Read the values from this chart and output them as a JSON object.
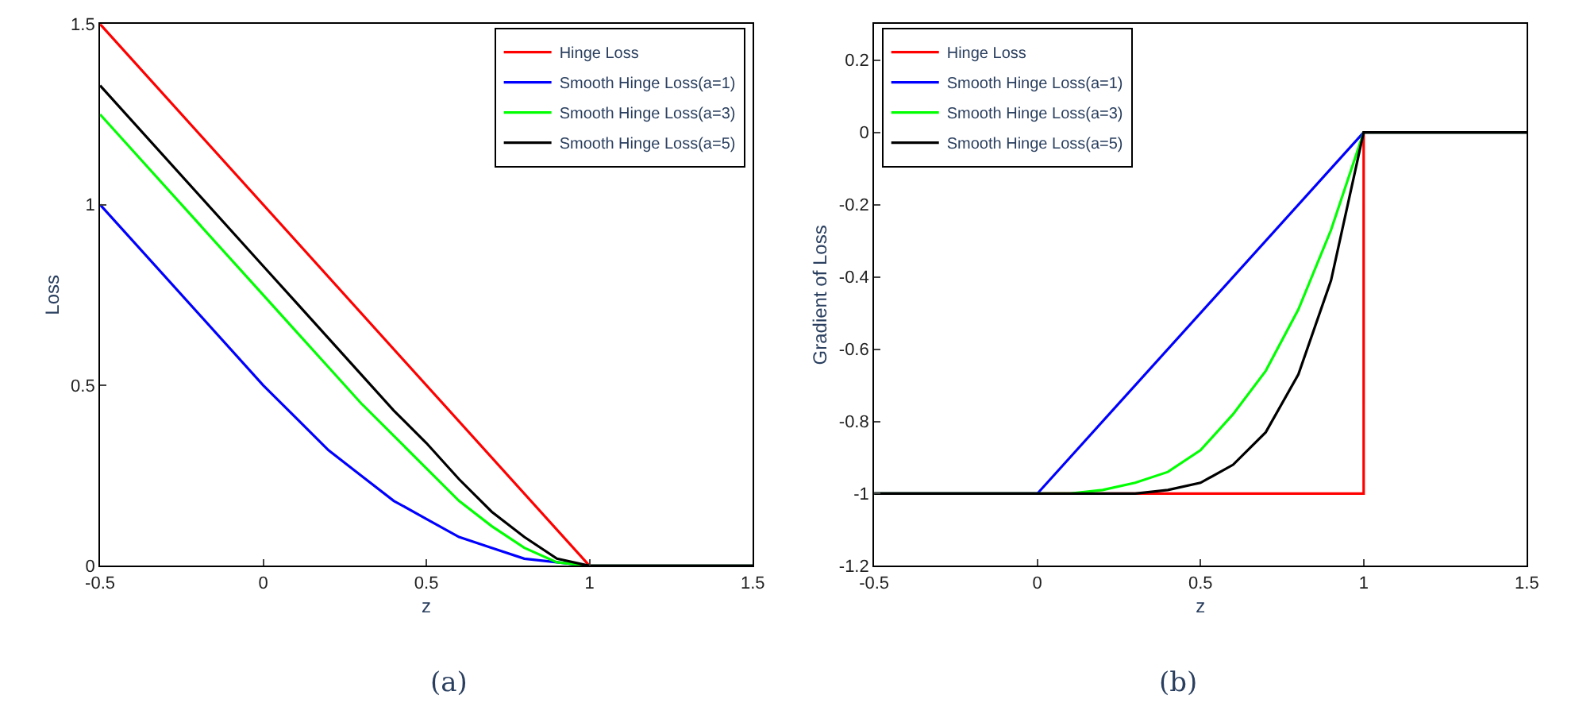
{
  "chart_data": [
    {
      "type": "line",
      "xlabel": "z",
      "ylabel": "Loss",
      "xlim": [
        -0.5,
        1.5
      ],
      "xticks": [
        -0.5,
        0,
        0.5,
        1,
        1.5
      ],
      "ylim": [
        0,
        1.5
      ],
      "yticks": [
        0,
        0.5,
        1,
        1.5
      ],
      "legend": "top right",
      "marker": "none",
      "line_style": "solid",
      "annotations": [
        "(a)"
      ],
      "series": [
        {
          "name": "Hinge Loss",
          "color": "#ff0000",
          "x": [
            -0.5,
            1,
            1.5
          ],
          "values": [
            1.5,
            0,
            0
          ]
        },
        {
          "name": "Smooth Hinge Loss(a=1)",
          "color": "#0000ff",
          "x": [
            -0.5,
            0,
            0.1,
            0.2,
            0.3,
            0.4,
            0.5,
            0.6,
            0.7,
            0.8,
            0.9,
            1,
            1.5
          ],
          "values": [
            1.0,
            0.5,
            0.41,
            0.32,
            0.25,
            0.18,
            0.13,
            0.08,
            0.05,
            0.02,
            0.01,
            0,
            0
          ]
        },
        {
          "name": "Smooth Hinge Loss(a=3)",
          "color": "#00ff00",
          "x": [
            -0.5,
            0,
            0.1,
            0.2,
            0.3,
            0.4,
            0.5,
            0.6,
            0.7,
            0.8,
            0.9,
            1,
            1.5
          ],
          "values": [
            1.25,
            0.75,
            0.65,
            0.55,
            0.45,
            0.36,
            0.27,
            0.18,
            0.11,
            0.05,
            0.01,
            0,
            0
          ]
        },
        {
          "name": "Smooth Hinge Loss(a=5)",
          "color": "#000000",
          "x": [
            -0.5,
            0,
            0.1,
            0.2,
            0.3,
            0.4,
            0.5,
            0.6,
            0.7,
            0.8,
            0.9,
            1,
            1.5
          ],
          "values": [
            1.33,
            0.83,
            0.73,
            0.63,
            0.53,
            0.43,
            0.34,
            0.24,
            0.15,
            0.08,
            0.02,
            0,
            0
          ]
        }
      ]
    },
    {
      "type": "line",
      "xlabel": "z",
      "ylabel": "Gradient of Loss",
      "xlim": [
        -0.5,
        1.5
      ],
      "xticks": [
        -0.5,
        0,
        0.5,
        1,
        1.5
      ],
      "ylim": [
        -1.2,
        0.3
      ],
      "yticks": [
        -1.2,
        -1,
        -0.8,
        -0.6,
        -0.4,
        -0.2,
        0,
        0.2
      ],
      "legend": "top left",
      "marker": "none",
      "line_style": "solid",
      "annotations": [
        "(b)"
      ],
      "series": [
        {
          "name": "Hinge Loss",
          "color": "#ff0000",
          "x": [
            -0.5,
            1,
            1,
            1.5
          ],
          "values": [
            -1,
            -1,
            0,
            0
          ]
        },
        {
          "name": "Smooth Hinge Loss(a=1)",
          "color": "#0000ff",
          "x": [
            -0.5,
            0,
            1,
            1.5
          ],
          "values": [
            -1,
            -1,
            0,
            0
          ]
        },
        {
          "name": "Smooth Hinge Loss(a=3)",
          "color": "#00ff00",
          "x": [
            -0.5,
            0,
            0.1,
            0.2,
            0.3,
            0.4,
            0.5,
            0.6,
            0.7,
            0.8,
            0.9,
            1,
            1.5
          ],
          "values": [
            -1,
            -1,
            -1,
            -0.99,
            -0.97,
            -0.94,
            -0.88,
            -0.78,
            -0.66,
            -0.49,
            -0.27,
            0,
            0
          ]
        },
        {
          "name": "Smooth Hinge Loss(a=5)",
          "color": "#000000",
          "x": [
            -0.5,
            0,
            0.1,
            0.2,
            0.3,
            0.4,
            0.5,
            0.6,
            0.7,
            0.8,
            0.9,
            1,
            1.5
          ],
          "values": [
            -1,
            -1,
            -1,
            -1,
            -1,
            -0.99,
            -0.97,
            -0.92,
            -0.83,
            -0.67,
            -0.41,
            0,
            0
          ]
        }
      ]
    }
  ]
}
